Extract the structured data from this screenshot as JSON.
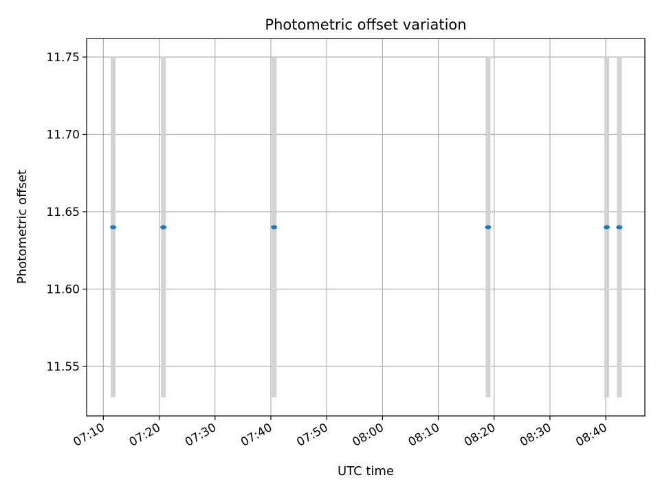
{
  "chart_data": {
    "type": "scatter",
    "title": "Photometric offset variation",
    "xlabel": "UTC time",
    "ylabel": "Photometric offset",
    "xlim": [
      "07:07",
      "08:47"
    ],
    "ylim": [
      11.518,
      11.762
    ],
    "x_ticks": [
      "07:10",
      "07:20",
      "07:30",
      "07:40",
      "07:50",
      "08:00",
      "08:10",
      "08:20",
      "08:30",
      "08:40"
    ],
    "y_ticks": [
      "11.55",
      "11.60",
      "11.65",
      "11.70",
      "11.75"
    ],
    "grid": true,
    "legend": "none",
    "colors": {
      "points": "#1f77b4",
      "error_bars": "#d3d3d3",
      "grid": "#b0b0b0"
    },
    "points": [
      {
        "x": "07:11:45",
        "y": 11.64,
        "y_low": 11.53,
        "y_high": 11.75
      },
      {
        "x": "07:20:45",
        "y": 11.64,
        "y_low": 11.53,
        "y_high": 11.75
      },
      {
        "x": "07:40:35",
        "y": 11.64,
        "y_low": 11.53,
        "y_high": 11.75
      },
      {
        "x": "08:18:55",
        "y": 11.64,
        "y_low": 11.53,
        "y_high": 11.75
      },
      {
        "x": "08:40:10",
        "y": 11.64,
        "y_low": 11.53,
        "y_high": 11.75
      },
      {
        "x": "08:42:25",
        "y": 11.64,
        "y_low": 11.53,
        "y_high": 11.75
      }
    ]
  }
}
